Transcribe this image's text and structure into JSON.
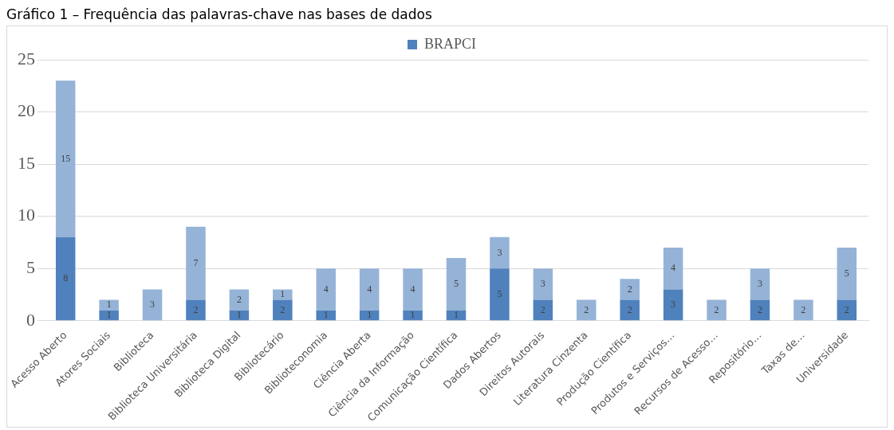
{
  "chart_data": {
    "type": "bar",
    "title": "Gráfico 1 – Frequência das palavras-chave nas bases de dados",
    "categories": [
      "Acesso Aberto",
      "Atores Sociais",
      "Biblioteca",
      "Biblioteca Universitária",
      "Biblioteca Digital",
      "Bibliotecário",
      "Biblioteconomia",
      "Ciência Aberta",
      "Ciência da Informação",
      "Comunicação Científica",
      "Dados Abertos",
      "Direitos Autorais",
      "Literatura Cinzenta",
      "Produção Científica",
      "Produtos e Serviços…",
      "Recursos de Acesso…",
      "Repositório…",
      "Taxas de…",
      "Universidade"
    ],
    "series": [
      {
        "name": "BRAPCI",
        "color": "#4f81bd",
        "values": [
          8,
          1,
          null,
          2,
          1,
          2,
          1,
          1,
          1,
          1,
          5,
          2,
          null,
          2,
          3,
          null,
          2,
          null,
          2
        ]
      },
      {
        "color": "#95b3d7",
        "values": [
          15,
          1,
          3,
          7,
          2,
          1,
          4,
          4,
          4,
          5,
          3,
          3,
          2,
          2,
          4,
          2,
          3,
          2,
          5
        ]
      }
    ],
    "stacked": true,
    "ylim": [
      0,
      25
    ],
    "yticks": [
      0,
      5,
      10,
      15,
      20,
      25
    ],
    "grid": "y",
    "legend": "top",
    "data_labels": true
  }
}
